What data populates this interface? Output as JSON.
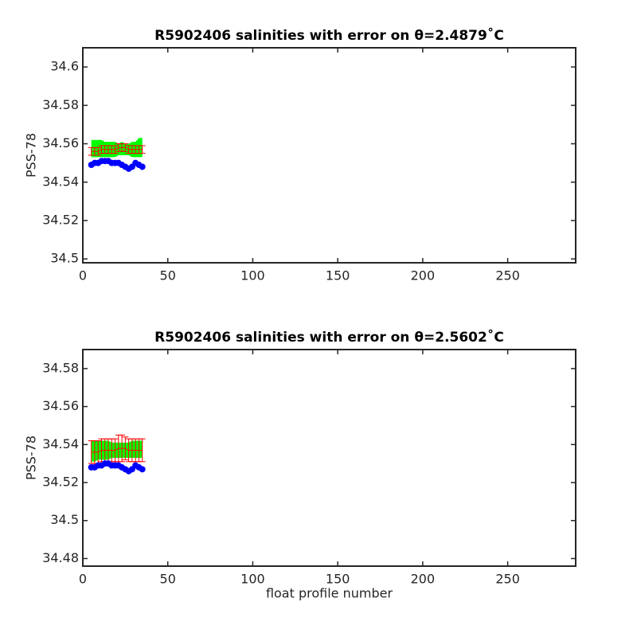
{
  "chart_data": [
    {
      "type": "scatter",
      "title": "R5902406 salinities with error on θ=2.4879˚C",
      "ylabel": "PSS-78",
      "x": [
        5,
        7,
        9,
        11,
        13,
        15,
        17,
        19,
        21,
        23,
        25,
        27,
        29,
        31,
        33,
        35
      ],
      "series": [
        {
          "style": "band",
          "color": "#00ff00",
          "upper": [
            34.562,
            34.562,
            34.562,
            34.562,
            34.561,
            34.561,
            34.561,
            34.561,
            34.56,
            34.561,
            34.56,
            34.56,
            34.561,
            34.561,
            34.563,
            34.563
          ],
          "lower": [
            34.553,
            34.553,
            34.553,
            34.553,
            34.553,
            34.553,
            34.553,
            34.553,
            34.554,
            34.554,
            34.554,
            34.554,
            34.553,
            34.553,
            34.553,
            34.553
          ]
        },
        {
          "style": "errorbar",
          "color": "#ff0000",
          "values": [
            34.556,
            34.556,
            34.556,
            34.557,
            34.557,
            34.557,
            34.557,
            34.557,
            34.558,
            34.558,
            34.558,
            34.557,
            34.557,
            34.557,
            34.557,
            34.557
          ],
          "errors": [
            0.002,
            0.002,
            0.002,
            0.002,
            0.002,
            0.002,
            0.002,
            0.002,
            0.002,
            0.002,
            0.002,
            0.002,
            0.002,
            0.002,
            0.002,
            0.002
          ]
        },
        {
          "style": "points",
          "color": "#0000ff",
          "values": [
            34.549,
            34.55,
            34.55,
            34.551,
            34.551,
            34.551,
            34.55,
            34.55,
            34.55,
            34.549,
            34.548,
            34.547,
            34.548,
            34.55,
            34.549,
            34.548
          ]
        }
      ],
      "xlim": [
        0,
        290
      ],
      "xticks": [
        0,
        50,
        100,
        150,
        200,
        250
      ],
      "ylim": [
        34.498,
        34.61
      ],
      "yticks": [
        34.5,
        34.52,
        34.54,
        34.56,
        34.58,
        34.6
      ]
    },
    {
      "type": "scatter",
      "title": "R5902406 salinities with error on θ=2.5602˚C",
      "ylabel": "PSS-78",
      "xlabel": "float profile number",
      "x": [
        5,
        7,
        9,
        11,
        13,
        15,
        17,
        19,
        21,
        23,
        25,
        27,
        29,
        31,
        33,
        35
      ],
      "series": [
        {
          "style": "band",
          "color": "#00ff00",
          "upper": [
            34.542,
            34.542,
            34.542,
            34.542,
            34.542,
            34.542,
            34.541,
            34.541,
            34.541,
            34.541,
            34.541,
            34.541,
            34.542,
            34.542,
            34.542,
            34.542
          ],
          "lower": [
            34.531,
            34.531,
            34.532,
            34.532,
            34.532,
            34.532,
            34.533,
            34.533,
            34.533,
            34.533,
            34.533,
            34.533,
            34.533,
            34.533,
            34.533,
            34.533
          ]
        },
        {
          "style": "errorbar",
          "color": "#ff0000",
          "values": [
            34.536,
            34.536,
            34.536,
            34.537,
            34.537,
            34.537,
            34.537,
            34.537,
            34.538,
            34.538,
            34.538,
            34.537,
            34.537,
            34.537,
            34.537,
            34.537
          ],
          "errors": [
            0.006,
            0.006,
            0.006,
            0.006,
            0.006,
            0.006,
            0.006,
            0.006,
            0.007,
            0.007,
            0.006,
            0.006,
            0.006,
            0.006,
            0.006,
            0.006
          ]
        },
        {
          "style": "points",
          "color": "#0000ff",
          "values": [
            34.528,
            34.528,
            34.529,
            34.529,
            34.53,
            34.53,
            34.529,
            34.529,
            34.529,
            34.528,
            34.527,
            34.526,
            34.527,
            34.529,
            34.528,
            34.527
          ]
        }
      ],
      "xlim": [
        0,
        290
      ],
      "xticks": [
        0,
        50,
        100,
        150,
        200,
        250
      ],
      "ylim": [
        34.476,
        34.59
      ],
      "yticks": [
        34.48,
        34.5,
        34.52,
        34.54,
        34.56,
        34.58
      ]
    }
  ]
}
